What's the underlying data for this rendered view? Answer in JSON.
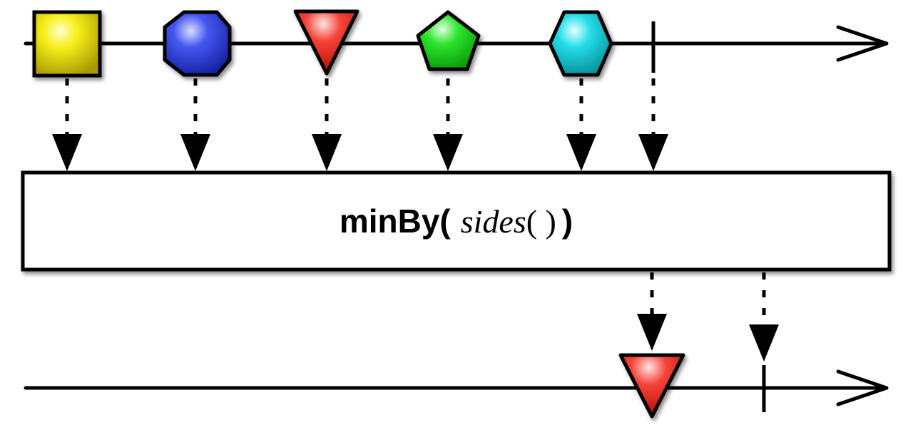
{
  "operator": {
    "name": "minBy(",
    "function": "sides",
    "args": "( )",
    "close": ")"
  },
  "input_stream": {
    "items": [
      {
        "shape": "square",
        "color": "#f2e600"
      },
      {
        "shape": "octagon",
        "color": "#2f3fe0"
      },
      {
        "shape": "triangle",
        "color": "#f0261c"
      },
      {
        "shape": "pentagon",
        "color": "#14d614"
      },
      {
        "shape": "hexagon",
        "color": "#12cbd6"
      }
    ],
    "completes": true
  },
  "output_stream": {
    "items": [
      {
        "shape": "triangle",
        "color": "#f0261c"
      }
    ],
    "completes": true
  }
}
